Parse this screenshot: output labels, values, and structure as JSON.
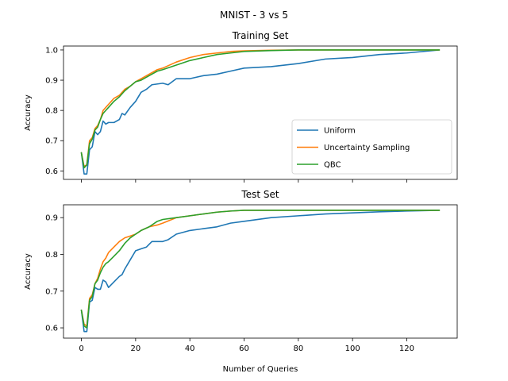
{
  "figure": {
    "suptitle": "MNIST - 3 vs 5",
    "xlabel": "Number of Queries"
  },
  "colors": {
    "uniform": "#1f77b4",
    "uncertainty": "#ff7f0e",
    "qbc": "#2ca02c",
    "frame": "#000000"
  },
  "chart_data": [
    {
      "type": "line",
      "title": "Training Set",
      "xlabel": "",
      "ylabel": "Accuracy",
      "xlim": [
        -6.6,
        138.6
      ],
      "ylim": [
        0.572,
        1.013
      ],
      "xticks": [
        0,
        20,
        40,
        60,
        80,
        100,
        120
      ],
      "xtick_labels": [],
      "yticks": [
        0.6,
        0.7,
        0.8,
        0.9,
        1.0
      ],
      "ytick_labels": [
        "0.6",
        "0.7",
        "0.8",
        "0.9",
        "1.0"
      ],
      "grid": false,
      "legend": {
        "placement": "lower-right",
        "entries": [
          "Uniform",
          "Uncertainty Sampling",
          "QBC"
        ]
      },
      "series": [
        {
          "name": "Uniform",
          "color_key": "uniform",
          "points": [
            [
              0,
              0.66
            ],
            [
              1,
              0.59
            ],
            [
              2,
              0.59
            ],
            [
              3,
              0.67
            ],
            [
              4,
              0.68
            ],
            [
              5,
              0.73
            ],
            [
              6,
              0.72
            ],
            [
              7,
              0.73
            ],
            [
              8,
              0.765
            ],
            [
              9,
              0.755
            ],
            [
              10,
              0.76
            ],
            [
              12,
              0.76
            ],
            [
              14,
              0.77
            ],
            [
              15,
              0.79
            ],
            [
              16,
              0.785
            ],
            [
              18,
              0.81
            ],
            [
              20,
              0.83
            ],
            [
              22,
              0.86
            ],
            [
              24,
              0.87
            ],
            [
              26,
              0.885
            ],
            [
              30,
              0.89
            ],
            [
              32,
              0.885
            ],
            [
              35,
              0.905
            ],
            [
              40,
              0.905
            ],
            [
              45,
              0.915
            ],
            [
              50,
              0.92
            ],
            [
              55,
              0.93
            ],
            [
              60,
              0.94
            ],
            [
              70,
              0.945
            ],
            [
              80,
              0.955
            ],
            [
              90,
              0.97
            ],
            [
              100,
              0.975
            ],
            [
              110,
              0.985
            ],
            [
              120,
              0.99
            ],
            [
              132,
              1.0
            ]
          ]
        },
        {
          "name": "Uncertainty Sampling",
          "color_key": "uncertainty",
          "points": [
            [
              0,
              0.66
            ],
            [
              1,
              0.615
            ],
            [
              2,
              0.62
            ],
            [
              3,
              0.7
            ],
            [
              4,
              0.71
            ],
            [
              5,
              0.74
            ],
            [
              6,
              0.75
            ],
            [
              7,
              0.77
            ],
            [
              8,
              0.8
            ],
            [
              9,
              0.81
            ],
            [
              10,
              0.82
            ],
            [
              12,
              0.84
            ],
            [
              14,
              0.85
            ],
            [
              16,
              0.87
            ],
            [
              18,
              0.88
            ],
            [
              20,
              0.895
            ],
            [
              22,
              0.905
            ],
            [
              25,
              0.92
            ],
            [
              28,
              0.935
            ],
            [
              30,
              0.94
            ],
            [
              35,
              0.96
            ],
            [
              40,
              0.975
            ],
            [
              45,
              0.985
            ],
            [
              50,
              0.99
            ],
            [
              55,
              0.995
            ],
            [
              60,
              0.997
            ],
            [
              70,
              0.999
            ],
            [
              80,
              1.0
            ],
            [
              100,
              1.0
            ],
            [
              132,
              1.0
            ]
          ]
        },
        {
          "name": "QBC",
          "color_key": "qbc",
          "points": [
            [
              0,
              0.66
            ],
            [
              1,
              0.61
            ],
            [
              2,
              0.62
            ],
            [
              3,
              0.69
            ],
            [
              4,
              0.705
            ],
            [
              5,
              0.735
            ],
            [
              6,
              0.745
            ],
            [
              7,
              0.77
            ],
            [
              8,
              0.79
            ],
            [
              9,
              0.8
            ],
            [
              10,
              0.81
            ],
            [
              12,
              0.83
            ],
            [
              14,
              0.845
            ],
            [
              16,
              0.865
            ],
            [
              18,
              0.88
            ],
            [
              20,
              0.895
            ],
            [
              22,
              0.9
            ],
            [
              25,
              0.915
            ],
            [
              28,
              0.93
            ],
            [
              30,
              0.935
            ],
            [
              35,
              0.95
            ],
            [
              40,
              0.965
            ],
            [
              45,
              0.975
            ],
            [
              50,
              0.985
            ],
            [
              55,
              0.99
            ],
            [
              60,
              0.995
            ],
            [
              70,
              0.998
            ],
            [
              80,
              1.0
            ],
            [
              100,
              1.0
            ],
            [
              132,
              1.0
            ]
          ]
        }
      ]
    },
    {
      "type": "line",
      "title": "Test Set",
      "xlabel": "Number of Queries",
      "ylabel": "Accuracy",
      "xlim": [
        -6.6,
        138.6
      ],
      "ylim": [
        0.572,
        0.935
      ],
      "xticks": [
        0,
        20,
        40,
        60,
        80,
        100,
        120
      ],
      "xtick_labels": [
        "0",
        "20",
        "40",
        "60",
        "80",
        "100",
        "120"
      ],
      "yticks": [
        0.6,
        0.7,
        0.8,
        0.9
      ],
      "ytick_labels": [
        "0.6",
        "0.7",
        "0.8",
        "0.9"
      ],
      "grid": false,
      "series": [
        {
          "name": "Uniform",
          "color_key": "uniform",
          "points": [
            [
              0,
              0.648
            ],
            [
              1,
              0.59
            ],
            [
              2,
              0.59
            ],
            [
              3,
              0.67
            ],
            [
              4,
              0.675
            ],
            [
              5,
              0.71
            ],
            [
              6,
              0.705
            ],
            [
              7,
              0.705
            ],
            [
              8,
              0.73
            ],
            [
              9,
              0.725
            ],
            [
              10,
              0.71
            ],
            [
              12,
              0.725
            ],
            [
              14,
              0.74
            ],
            [
              15,
              0.745
            ],
            [
              16,
              0.76
            ],
            [
              18,
              0.785
            ],
            [
              20,
              0.81
            ],
            [
              22,
              0.815
            ],
            [
              24,
              0.82
            ],
            [
              26,
              0.835
            ],
            [
              30,
              0.835
            ],
            [
              32,
              0.84
            ],
            [
              35,
              0.855
            ],
            [
              40,
              0.865
            ],
            [
              45,
              0.87
            ],
            [
              50,
              0.875
            ],
            [
              55,
              0.885
            ],
            [
              60,
              0.89
            ],
            [
              70,
              0.9
            ],
            [
              80,
              0.905
            ],
            [
              90,
              0.91
            ],
            [
              100,
              0.913
            ],
            [
              110,
              0.916
            ],
            [
              120,
              0.918
            ],
            [
              132,
              0.92
            ]
          ]
        },
        {
          "name": "Uncertainty Sampling",
          "color_key": "uncertainty",
          "points": [
            [
              0,
              0.648
            ],
            [
              1,
              0.61
            ],
            [
              2,
              0.605
            ],
            [
              3,
              0.68
            ],
            [
              4,
              0.69
            ],
            [
              5,
              0.72
            ],
            [
              6,
              0.735
            ],
            [
              7,
              0.76
            ],
            [
              8,
              0.78
            ],
            [
              9,
              0.79
            ],
            [
              10,
              0.805
            ],
            [
              12,
              0.82
            ],
            [
              14,
              0.835
            ],
            [
              16,
              0.845
            ],
            [
              18,
              0.85
            ],
            [
              20,
              0.855
            ],
            [
              22,
              0.865
            ],
            [
              25,
              0.875
            ],
            [
              28,
              0.88
            ],
            [
              30,
              0.885
            ],
            [
              35,
              0.9
            ],
            [
              40,
              0.905
            ],
            [
              45,
              0.91
            ],
            [
              50,
              0.915
            ],
            [
              55,
              0.918
            ],
            [
              60,
              0.92
            ],
            [
              70,
              0.92
            ],
            [
              80,
              0.92
            ],
            [
              100,
              0.92
            ],
            [
              132,
              0.92
            ]
          ]
        },
        {
          "name": "QBC",
          "color_key": "qbc",
          "points": [
            [
              0,
              0.648
            ],
            [
              1,
              0.605
            ],
            [
              2,
              0.6
            ],
            [
              3,
              0.675
            ],
            [
              4,
              0.685
            ],
            [
              5,
              0.72
            ],
            [
              6,
              0.73
            ],
            [
              7,
              0.75
            ],
            [
              8,
              0.765
            ],
            [
              9,
              0.775
            ],
            [
              10,
              0.78
            ],
            [
              12,
              0.795
            ],
            [
              14,
              0.81
            ],
            [
              16,
              0.83
            ],
            [
              18,
              0.845
            ],
            [
              20,
              0.855
            ],
            [
              22,
              0.865
            ],
            [
              25,
              0.875
            ],
            [
              28,
              0.89
            ],
            [
              30,
              0.895
            ],
            [
              35,
              0.9
            ],
            [
              40,
              0.905
            ],
            [
              45,
              0.91
            ],
            [
              50,
              0.915
            ],
            [
              55,
              0.918
            ],
            [
              60,
              0.92
            ],
            [
              70,
              0.92
            ],
            [
              80,
              0.92
            ],
            [
              100,
              0.92
            ],
            [
              132,
              0.92
            ]
          ]
        }
      ]
    }
  ]
}
